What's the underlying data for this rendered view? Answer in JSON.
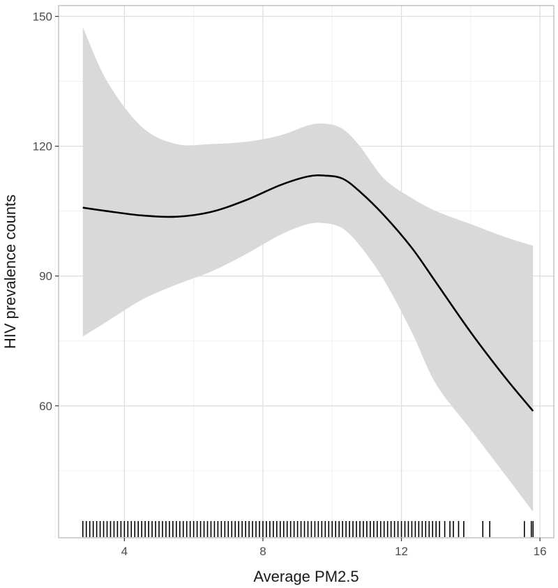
{
  "chart_data": {
    "type": "line",
    "title": "",
    "xlabel": "Average PM2.5",
    "ylabel": "HIV prevalence counts",
    "xlim": [
      2.1,
      16.4
    ],
    "ylim": [
      29.5,
      152.5
    ],
    "x_ticks": [
      4,
      8,
      12,
      16
    ],
    "y_ticks": [
      60,
      90,
      120,
      150
    ],
    "x_minor": [
      2,
      6,
      10,
      14
    ],
    "y_minor": [
      45,
      75,
      105,
      135
    ],
    "grid": true,
    "series": [
      {
        "name": "smooth fit",
        "x": [
          2.8,
          3.5,
          4.5,
          5.5,
          6.5,
          7.5,
          8.5,
          9.3,
          9.8,
          10.3,
          10.8,
          11.5,
          12.3,
          13.0,
          14.0,
          15.0,
          15.8
        ],
        "y": [
          105.8,
          105.0,
          104.0,
          103.7,
          104.8,
          107.5,
          111.0,
          113.0,
          113.2,
          112.5,
          109.5,
          104.0,
          96.5,
          88.5,
          77.0,
          66.5,
          58.8
        ],
        "lower": [
          76.0,
          79.5,
          84.5,
          88.0,
          91.0,
          95.0,
          99.5,
          102.0,
          102.2,
          101.0,
          97.0,
          89.0,
          77.0,
          65.0,
          54.5,
          44.0,
          35.5
        ],
        "upper": [
          147.5,
          135.0,
          124.5,
          120.5,
          120.5,
          121.0,
          122.5,
          124.8,
          125.2,
          124.0,
          120.0,
          112.5,
          108.0,
          105.0,
          102.0,
          99.0,
          97.0
        ]
      }
    ],
    "rug_x": [
      2.8,
      2.9,
      3.0,
      3.1,
      3.2,
      3.3,
      3.4,
      3.5,
      3.6,
      3.7,
      3.8,
      3.9,
      4.0,
      4.1,
      4.2,
      4.3,
      4.4,
      4.5,
      4.6,
      4.7,
      4.8,
      4.9,
      5.0,
      5.1,
      5.2,
      5.3,
      5.4,
      5.5,
      5.6,
      5.7,
      5.8,
      5.9,
      6.0,
      6.1,
      6.2,
      6.3,
      6.4,
      6.5,
      6.6,
      6.7,
      6.8,
      6.9,
      7.0,
      7.1,
      7.2,
      7.3,
      7.4,
      7.5,
      7.6,
      7.7,
      7.8,
      7.9,
      8.0,
      8.1,
      8.2,
      8.3,
      8.4,
      8.5,
      8.6,
      8.7,
      8.8,
      8.9,
      9.0,
      9.1,
      9.2,
      9.3,
      9.4,
      9.5,
      9.6,
      9.7,
      9.8,
      9.9,
      10.0,
      10.1,
      10.2,
      10.3,
      10.4,
      10.5,
      10.6,
      10.7,
      10.8,
      10.9,
      11.0,
      11.1,
      11.2,
      11.3,
      11.4,
      11.5,
      11.6,
      11.7,
      11.8,
      11.9,
      12.0,
      12.1,
      12.2,
      12.3,
      12.4,
      12.5,
      12.6,
      12.7,
      12.8,
      12.9,
      13.0,
      13.1,
      13.25,
      13.4,
      13.5,
      13.65,
      13.8,
      14.35,
      14.55,
      15.55,
      15.75,
      15.8
    ]
  }
}
